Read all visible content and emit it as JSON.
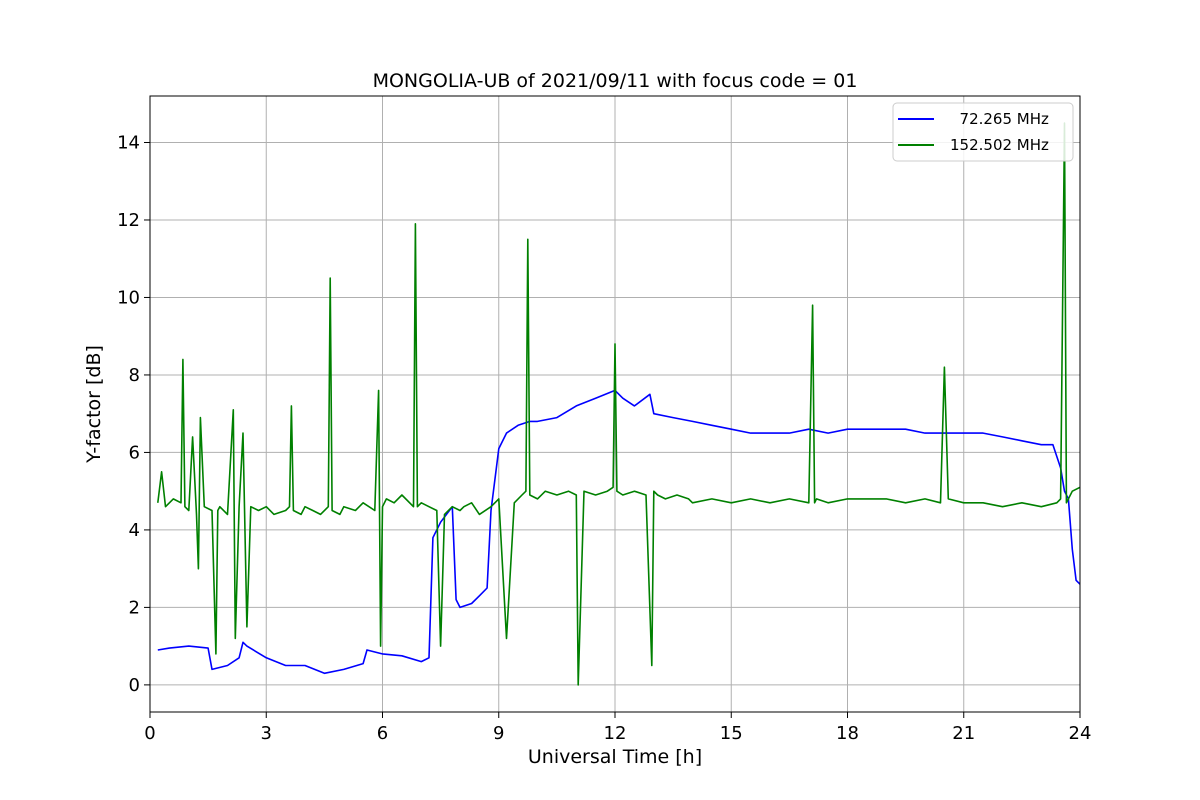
{
  "chart_data": {
    "type": "line",
    "title": "MONGOLIA-UB of 2021/09/11 with focus code = 01",
    "xlabel": "Universal Time [h]",
    "ylabel": "Y-factor [dB]",
    "xlim": [
      0,
      24
    ],
    "ylim": [
      -0.7,
      15.2
    ],
    "xticks": [
      0,
      3,
      6,
      9,
      12,
      15,
      18,
      21,
      24
    ],
    "yticks": [
      0,
      2,
      4,
      6,
      8,
      10,
      12,
      14
    ],
    "grid": true,
    "legend": "top-right",
    "series": [
      {
        "name": "  72.265 MHz",
        "color": "#0000ff",
        "x": [
          0.2,
          0.5,
          1.0,
          1.5,
          1.6,
          2.0,
          2.3,
          2.4,
          2.5,
          3.0,
          3.5,
          4.0,
          4.5,
          5.0,
          5.5,
          5.6,
          6.0,
          6.5,
          7.0,
          7.2,
          7.3,
          7.5,
          7.8,
          7.9,
          8.0,
          8.3,
          8.5,
          8.7,
          8.8,
          9.0,
          9.2,
          9.5,
          9.8,
          10.0,
          10.5,
          11.0,
          11.5,
          12.0,
          12.2,
          12.5,
          12.9,
          13.0,
          13.5,
          14.0,
          14.5,
          15.0,
          15.5,
          16.0,
          16.5,
          17.0,
          17.5,
          18.0,
          18.5,
          19.0,
          19.5,
          20.0,
          20.5,
          21.0,
          21.5,
          22.0,
          22.5,
          23.0,
          23.3,
          23.5,
          23.6,
          23.7,
          23.8,
          23.9,
          24.0
        ],
        "y": [
          0.9,
          0.95,
          1.0,
          0.95,
          0.4,
          0.5,
          0.7,
          1.1,
          1.0,
          0.7,
          0.5,
          0.5,
          0.3,
          0.4,
          0.55,
          0.9,
          0.8,
          0.75,
          0.6,
          0.7,
          3.8,
          4.2,
          4.6,
          2.2,
          2.0,
          2.1,
          2.3,
          2.5,
          4.5,
          6.1,
          6.5,
          6.7,
          6.8,
          6.8,
          6.9,
          7.2,
          7.4,
          7.6,
          7.4,
          7.2,
          7.5,
          7.0,
          6.9,
          6.8,
          6.7,
          6.6,
          6.5,
          6.5,
          6.5,
          6.6,
          6.5,
          6.6,
          6.6,
          6.6,
          6.6,
          6.5,
          6.5,
          6.5,
          6.5,
          6.4,
          6.3,
          6.2,
          6.2,
          5.6,
          5.0,
          4.8,
          3.5,
          2.7,
          2.6
        ]
      },
      {
        "name": "152.502 MHz",
        "color": "#008000",
        "x": [
          0.2,
          0.3,
          0.4,
          0.6,
          0.8,
          0.85,
          0.9,
          1.0,
          1.1,
          1.2,
          1.25,
          1.3,
          1.4,
          1.6,
          1.7,
          1.75,
          1.8,
          2.0,
          2.15,
          2.2,
          2.3,
          2.4,
          2.5,
          2.6,
          2.8,
          3.0,
          3.2,
          3.5,
          3.6,
          3.65,
          3.7,
          3.9,
          4.0,
          4.2,
          4.4,
          4.6,
          4.65,
          4.7,
          4.9,
          5.0,
          5.3,
          5.5,
          5.8,
          5.9,
          5.95,
          6.0,
          6.1,
          6.3,
          6.5,
          6.8,
          6.85,
          6.9,
          7.0,
          7.2,
          7.4,
          7.5,
          7.6,
          7.8,
          8.0,
          8.1,
          8.3,
          8.5,
          8.8,
          9.0,
          9.2,
          9.4,
          9.6,
          9.7,
          9.75,
          9.8,
          10.0,
          10.2,
          10.5,
          10.8,
          11.0,
          11.05,
          11.2,
          11.5,
          11.8,
          11.95,
          12.0,
          12.05,
          12.2,
          12.5,
          12.8,
          12.95,
          13.0,
          13.1,
          13.3,
          13.6,
          13.9,
          14.0,
          14.5,
          15.0,
          15.5,
          16.0,
          16.5,
          17.0,
          17.1,
          17.15,
          17.2,
          17.5,
          18.0,
          18.5,
          19.0,
          19.5,
          20.0,
          20.4,
          20.5,
          20.6,
          21.0,
          21.5,
          22.0,
          22.5,
          23.0,
          23.4,
          23.5,
          23.6,
          23.65,
          23.7,
          23.8,
          24.0
        ],
        "y": [
          4.7,
          5.5,
          4.6,
          4.8,
          4.7,
          8.4,
          4.6,
          4.5,
          6.4,
          4.4,
          3.0,
          6.9,
          4.6,
          4.5,
          0.8,
          4.5,
          4.6,
          4.4,
          7.1,
          1.2,
          4.6,
          6.5,
          1.5,
          4.6,
          4.5,
          4.6,
          4.4,
          4.5,
          4.6,
          7.2,
          4.5,
          4.4,
          4.6,
          4.5,
          4.4,
          4.6,
          10.5,
          4.5,
          4.4,
          4.6,
          4.5,
          4.7,
          4.5,
          7.6,
          1.0,
          4.6,
          4.8,
          4.7,
          4.9,
          4.6,
          11.9,
          4.6,
          4.7,
          4.6,
          4.5,
          1.0,
          4.4,
          4.6,
          4.5,
          4.6,
          4.7,
          4.4,
          4.6,
          4.8,
          1.2,
          4.7,
          4.9,
          5.0,
          11.5,
          4.9,
          4.8,
          5.0,
          4.9,
          5.0,
          4.9,
          0.0,
          5.0,
          4.9,
          5.0,
          5.1,
          8.8,
          5.0,
          4.9,
          5.0,
          4.9,
          0.5,
          5.0,
          4.9,
          4.8,
          4.9,
          4.8,
          4.7,
          4.8,
          4.7,
          4.8,
          4.7,
          4.8,
          4.7,
          9.8,
          4.7,
          4.8,
          4.7,
          4.8,
          4.8,
          4.8,
          4.7,
          4.8,
          4.7,
          8.2,
          4.8,
          4.7,
          4.7,
          4.6,
          4.7,
          4.6,
          4.7,
          4.8,
          14.5,
          4.7,
          4.8,
          5.0,
          5.1
        ]
      }
    ]
  }
}
